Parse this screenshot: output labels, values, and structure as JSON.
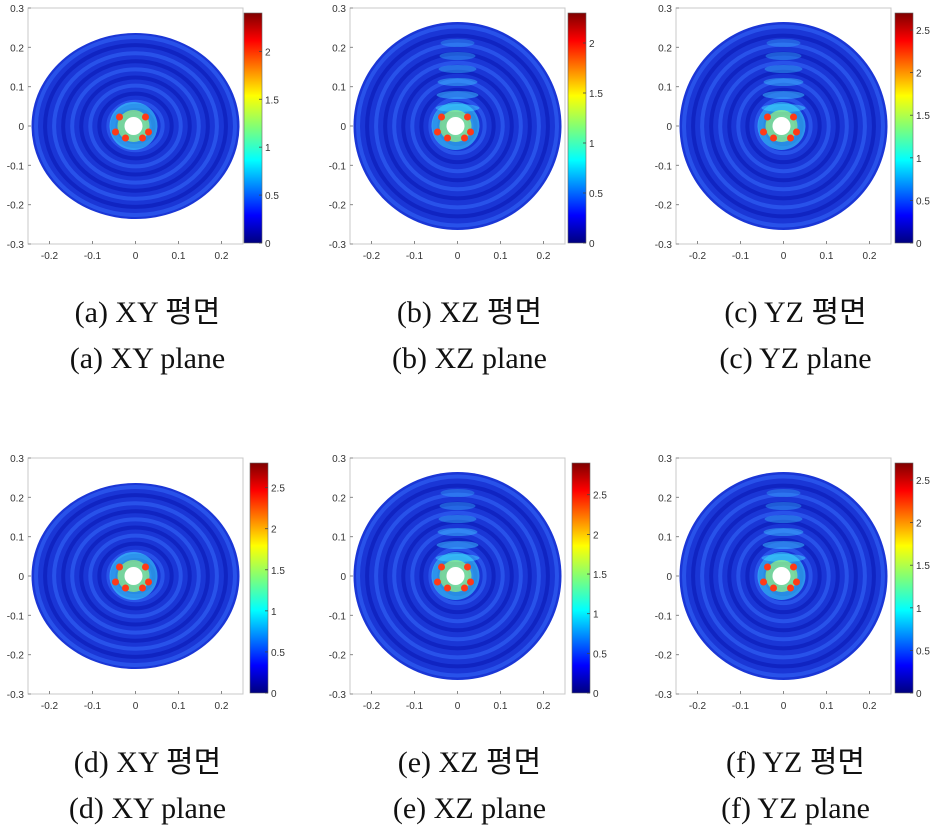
{
  "chart_data": [
    {
      "type": "heatmap",
      "field": "disk",
      "caption_kr": "(a)  XY  평면",
      "caption_en": "(a)  XY  plane",
      "xticks": [
        "-0.2",
        "-0.1",
        "0",
        "0.1",
        "0.2"
      ],
      "yticks": [
        "0.3",
        "0.2",
        "0.1",
        "0",
        "-0.1",
        "-0.2",
        "-0.3"
      ],
      "cbar_ticks": [
        "2",
        "1.5",
        "1",
        "0.5",
        "0"
      ],
      "cbar_max": 2.4
    },
    {
      "type": "heatmap",
      "field": "xz",
      "caption_kr": "(b)  XZ  평면",
      "caption_en": "(b)  XZ  plane",
      "xticks": [
        "-0.2",
        "-0.1",
        "0",
        "0.1",
        "0.2"
      ],
      "yticks": [
        "0.3",
        "0.2",
        "0.1",
        "0",
        "-0.1",
        "-0.2",
        "-0.3"
      ],
      "cbar_ticks": [
        "2",
        "1.5",
        "1",
        "0.5",
        "0"
      ],
      "cbar_max": 2.3
    },
    {
      "type": "heatmap",
      "field": "yz",
      "caption_kr": "(c)  YZ  평면",
      "caption_en": "(c)  YZ  plane",
      "xticks": [
        "-0.2",
        "-0.1",
        "0",
        "0.1",
        "0.2"
      ],
      "yticks": [
        "0.3",
        "0.2",
        "0.1",
        "0",
        "-0.1",
        "-0.2",
        "-0.3"
      ],
      "cbar_ticks": [
        "2.5",
        "2",
        "1.5",
        "1",
        "0.5",
        "0"
      ],
      "cbar_max": 2.7
    },
    {
      "type": "heatmap",
      "field": "disk",
      "caption_kr": "(d)  XY  평면",
      "caption_en": "(d)  XY  plane",
      "xticks": [
        "-0.2",
        "-0.1",
        "0",
        "0.1",
        "0.2"
      ],
      "yticks": [
        "0.3",
        "0.2",
        "0.1",
        "0",
        "-0.1",
        "-0.2",
        "-0.3"
      ],
      "cbar_ticks": [
        "2.5",
        "2",
        "1.5",
        "1",
        "0.5",
        "0"
      ],
      "cbar_max": 2.8
    },
    {
      "type": "heatmap",
      "field": "xz",
      "caption_kr": "(e)  XZ  평면",
      "caption_en": "(e)  XZ  plane",
      "xticks": [
        "-0.2",
        "-0.1",
        "0",
        "0.1",
        "0.2"
      ],
      "yticks": [
        "0.3",
        "0.2",
        "0.1",
        "0",
        "-0.1",
        "-0.2",
        "-0.3"
      ],
      "cbar_ticks": [
        "2.5",
        "2",
        "1.5",
        "1",
        "0.5",
        "0"
      ],
      "cbar_max": 2.9
    },
    {
      "type": "heatmap",
      "field": "yz",
      "caption_kr": "(f)  YZ  평면",
      "caption_en": "(f)  YZ  plane",
      "xticks": [
        "-0.2",
        "-0.1",
        "0",
        "0.1",
        "0.2"
      ],
      "yticks": [
        "0.3",
        "0.2",
        "0.1",
        "0",
        "-0.1",
        "-0.2",
        "-0.3"
      ],
      "cbar_ticks": [
        "2.5",
        "2",
        "1.5",
        "1",
        "0.5",
        "0"
      ],
      "cbar_max": 2.7
    }
  ]
}
